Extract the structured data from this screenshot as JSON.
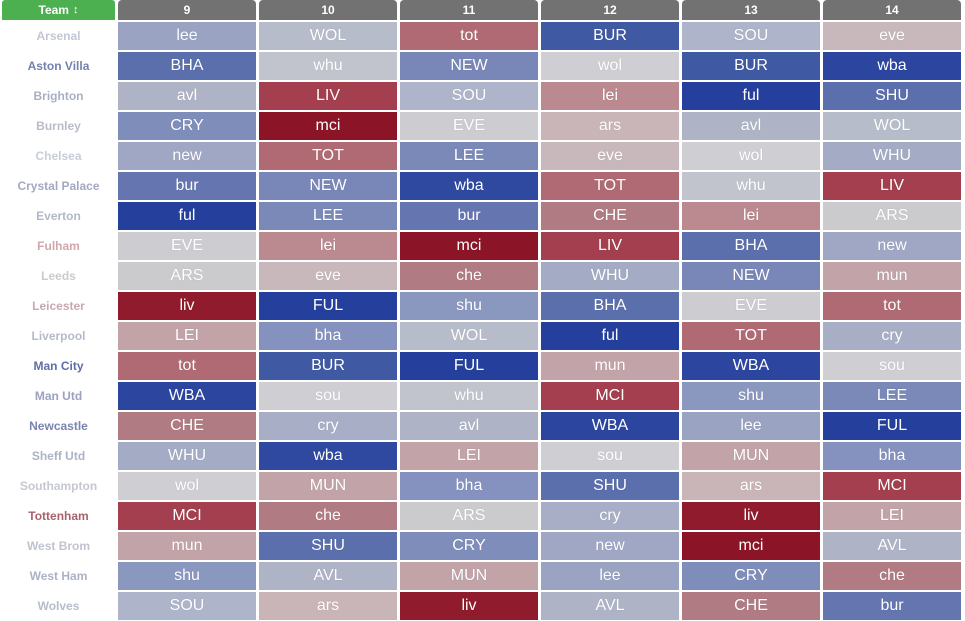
{
  "header": {
    "team_label": "Team",
    "sort_icon": "sort-numeric-icon",
    "gameweeks": [
      "9",
      "10",
      "11",
      "12",
      "13",
      "14"
    ]
  },
  "colors": {
    "header_team_bg": "#4caf50",
    "header_gw_bg": "#727272",
    "difficulty_scale": [
      "#11318f",
      "#2c4a9e",
      "#5a6ead",
      "#8591bb",
      "#b1b6c6",
      "#d1d1d1",
      "#c9b5b7",
      "#c08f94",
      "#ad6c73",
      "#a24150",
      "#8b1526"
    ]
  },
  "rows": [
    {
      "team": "Arsenal",
      "team_color": "#c3c6d4",
      "fixtures": [
        {
          "opp": "lee",
          "c": "#9ba3c3"
        },
        {
          "opp": "WOL",
          "c": "#b7bcca"
        },
        {
          "opp": "tot",
          "c": "#b06a74"
        },
        {
          "opp": "BUR",
          "c": "#3f5aa3"
        },
        {
          "opp": "SOU",
          "c": "#aeb4c9"
        },
        {
          "opp": "eve",
          "c": "#c8b8bc"
        }
      ]
    },
    {
      "team": "Aston Villa",
      "team_color": "#7480ad",
      "fixtures": [
        {
          "opp": "BHA",
          "c": "#5b6fad"
        },
        {
          "opp": "whu",
          "c": "#c2c4cd"
        },
        {
          "opp": "NEW",
          "c": "#7887b8"
        },
        {
          "opp": "wol",
          "c": "#cfcfd3"
        },
        {
          "opp": "BUR",
          "c": "#3f5aa3"
        },
        {
          "opp": "wba",
          "c": "#2c46a0"
        }
      ]
    },
    {
      "team": "Brighton",
      "team_color": "#a9afc3",
      "fixtures": [
        {
          "opp": "avl",
          "c": "#aeb3c6"
        },
        {
          "opp": "LIV",
          "c": "#a33f4e"
        },
        {
          "opp": "SOU",
          "c": "#aeb4c9"
        },
        {
          "opp": "lei",
          "c": "#ba8a90"
        },
        {
          "opp": "ful",
          "c": "#24409c"
        },
        {
          "opp": "SHU",
          "c": "#5b6fad"
        }
      ]
    },
    {
      "team": "Burnley",
      "team_color": "#b8bcc9",
      "fixtures": [
        {
          "opp": "CRY",
          "c": "#7e8dba"
        },
        {
          "opp": "mci",
          "c": "#8b1526"
        },
        {
          "opp": "EVE",
          "c": "#cdcdd1"
        },
        {
          "opp": "ars",
          "c": "#c9b5b8"
        },
        {
          "opp": "avl",
          "c": "#aeb3c6"
        },
        {
          "opp": "WOL",
          "c": "#b7bcca"
        }
      ]
    },
    {
      "team": "Chelsea",
      "team_color": "#c9cdd8",
      "fixtures": [
        {
          "opp": "new",
          "c": "#a0a7c4"
        },
        {
          "opp": "TOT",
          "c": "#b06a74"
        },
        {
          "opp": "LEE",
          "c": "#7a89b8"
        },
        {
          "opp": "eve",
          "c": "#c8b8bc"
        },
        {
          "opp": "wol",
          "c": "#cfcfd3"
        },
        {
          "opp": "WHU",
          "c": "#a4abc5"
        }
      ]
    },
    {
      "team": "Crystal Palace",
      "team_color": "#a2a9c2",
      "fixtures": [
        {
          "opp": "bur",
          "c": "#6475b0"
        },
        {
          "opp": "NEW",
          "c": "#7887b8"
        },
        {
          "opp": "wba",
          "c": "#2f49a0"
        },
        {
          "opp": "TOT",
          "c": "#b06a74"
        },
        {
          "opp": "whu",
          "c": "#c2c4cd"
        },
        {
          "opp": "LIV",
          "c": "#a33f4e"
        }
      ]
    },
    {
      "team": "Everton",
      "team_color": "#b3b8c8",
      "fixtures": [
        {
          "opp": "ful",
          "c": "#24409c"
        },
        {
          "opp": "LEE",
          "c": "#7a89b8"
        },
        {
          "opp": "bur",
          "c": "#6475b0"
        },
        {
          "opp": "CHE",
          "c": "#b07b82"
        },
        {
          "opp": "lei",
          "c": "#ba8a90"
        },
        {
          "opp": "ARS",
          "c": "#cbcbce"
        }
      ]
    },
    {
      "team": "Fulham",
      "team_color": "#cfa8ae",
      "fixtures": [
        {
          "opp": "EVE",
          "c": "#cdcdd1"
        },
        {
          "opp": "lei",
          "c": "#ba8a90"
        },
        {
          "opp": "mci",
          "c": "#8b1526"
        },
        {
          "opp": "LIV",
          "c": "#a33f4e"
        },
        {
          "opp": "BHA",
          "c": "#5b6fad"
        },
        {
          "opp": "new",
          "c": "#a0a7c4"
        }
      ]
    },
    {
      "team": "Leeds",
      "team_color": "#cbcbcb",
      "fixtures": [
        {
          "opp": "ARS",
          "c": "#cbcbce"
        },
        {
          "opp": "eve",
          "c": "#c8b8bc"
        },
        {
          "opp": "che",
          "c": "#b07b82"
        },
        {
          "opp": "WHU",
          "c": "#a4abc5"
        },
        {
          "opp": "NEW",
          "c": "#7887b8"
        },
        {
          "opp": "mun",
          "c": "#c1a3a8"
        }
      ]
    },
    {
      "team": "Leicester",
      "team_color": "#c7aab0",
      "fixtures": [
        {
          "opp": "liv",
          "c": "#8f1b2c"
        },
        {
          "opp": "FUL",
          "c": "#24409c"
        },
        {
          "opp": "shu",
          "c": "#8a97bf"
        },
        {
          "opp": "BHA",
          "c": "#5b6fad"
        },
        {
          "opp": "EVE",
          "c": "#cdcdd1"
        },
        {
          "opp": "tot",
          "c": "#b06a74"
        }
      ]
    },
    {
      "team": "Liverpool",
      "team_color": "#b5bbca",
      "fixtures": [
        {
          "opp": "LEI",
          "c": "#c1a3a8"
        },
        {
          "opp": "bha",
          "c": "#8592bf"
        },
        {
          "opp": "WOL",
          "c": "#b7bcca"
        },
        {
          "opp": "ful",
          "c": "#24409c"
        },
        {
          "opp": "TOT",
          "c": "#b06a74"
        },
        {
          "opp": "cry",
          "c": "#a7aec6"
        }
      ]
    },
    {
      "team": "Man City",
      "team_color": "#5e6ea8",
      "fixtures": [
        {
          "opp": "tot",
          "c": "#b06a74"
        },
        {
          "opp": "BUR",
          "c": "#3f5aa3"
        },
        {
          "opp": "FUL",
          "c": "#24409c"
        },
        {
          "opp": "mun",
          "c": "#c1a3a8"
        },
        {
          "opp": "WBA",
          "c": "#2c46a0"
        },
        {
          "opp": "sou",
          "c": "#cfcfd3"
        }
      ]
    },
    {
      "team": "Man Utd",
      "team_color": "#9aa2c0",
      "fixtures": [
        {
          "opp": "WBA",
          "c": "#2c46a0"
        },
        {
          "opp": "sou",
          "c": "#cfcfd3"
        },
        {
          "opp": "whu",
          "c": "#c2c4cd"
        },
        {
          "opp": "MCI",
          "c": "#a33f4e"
        },
        {
          "opp": "shu",
          "c": "#8a97bf"
        },
        {
          "opp": "LEE",
          "c": "#7a89b8"
        }
      ]
    },
    {
      "team": "Newcastle",
      "team_color": "#7985b0",
      "fixtures": [
        {
          "opp": "CHE",
          "c": "#b07b82"
        },
        {
          "opp": "cry",
          "c": "#a7aec6"
        },
        {
          "opp": "avl",
          "c": "#aeb3c6"
        },
        {
          "opp": "WBA",
          "c": "#2c46a0"
        },
        {
          "opp": "lee",
          "c": "#9ba3c3"
        },
        {
          "opp": "FUL",
          "c": "#24409c"
        }
      ]
    },
    {
      "team": "Sheff Utd",
      "team_color": "#adb3c6",
      "fixtures": [
        {
          "opp": "WHU",
          "c": "#a4abc5"
        },
        {
          "opp": "wba",
          "c": "#2f49a0"
        },
        {
          "opp": "LEI",
          "c": "#c1a3a8"
        },
        {
          "opp": "sou",
          "c": "#cfcfd3"
        },
        {
          "opp": "MUN",
          "c": "#c1a3a8"
        },
        {
          "opp": "bha",
          "c": "#8592bf"
        }
      ]
    },
    {
      "team": "Southampton",
      "team_color": "#c5c8d2",
      "fixtures": [
        {
          "opp": "wol",
          "c": "#cfcfd3"
        },
        {
          "opp": "MUN",
          "c": "#c1a3a8"
        },
        {
          "opp": "bha",
          "c": "#8592bf"
        },
        {
          "opp": "SHU",
          "c": "#5b6fad"
        },
        {
          "opp": "ars",
          "c": "#c9b5b8"
        },
        {
          "opp": "MCI",
          "c": "#a33f4e"
        }
      ]
    },
    {
      "team": "Tottenham",
      "team_color": "#a7626c",
      "fixtures": [
        {
          "opp": "MCI",
          "c": "#a33f4e"
        },
        {
          "opp": "che",
          "c": "#b07b82"
        },
        {
          "opp": "ARS",
          "c": "#cbcbce"
        },
        {
          "opp": "cry",
          "c": "#a7aec6"
        },
        {
          "opp": "liv",
          "c": "#8f1b2c"
        },
        {
          "opp": "LEI",
          "c": "#c1a3a8"
        }
      ]
    },
    {
      "team": "West Brom",
      "team_color": "#c0c3cf",
      "fixtures": [
        {
          "opp": "mun",
          "c": "#c1a3a8"
        },
        {
          "opp": "SHU",
          "c": "#5b6fad"
        },
        {
          "opp": "CRY",
          "c": "#7e8dba"
        },
        {
          "opp": "new",
          "c": "#a0a7c4"
        },
        {
          "opp": "mci",
          "c": "#8b1526"
        },
        {
          "opp": "AVL",
          "c": "#aeb3c6"
        }
      ]
    },
    {
      "team": "West Ham",
      "team_color": "#acb2c6",
      "fixtures": [
        {
          "opp": "shu",
          "c": "#8a97bf"
        },
        {
          "opp": "AVL",
          "c": "#aeb3c6"
        },
        {
          "opp": "MUN",
          "c": "#c1a3a8"
        },
        {
          "opp": "lee",
          "c": "#9ba3c3"
        },
        {
          "opp": "CRY",
          "c": "#7e8dba"
        },
        {
          "opp": "che",
          "c": "#b07b82"
        }
      ]
    },
    {
      "team": "Wolves",
      "team_color": "#b7bccb",
      "fixtures": [
        {
          "opp": "SOU",
          "c": "#aeb4c9"
        },
        {
          "opp": "ars",
          "c": "#c9b5b8"
        },
        {
          "opp": "liv",
          "c": "#8f1b2c"
        },
        {
          "opp": "AVL",
          "c": "#aeb3c6"
        },
        {
          "opp": "CHE",
          "c": "#b07b82"
        },
        {
          "opp": "bur",
          "c": "#6475b0"
        }
      ]
    }
  ]
}
